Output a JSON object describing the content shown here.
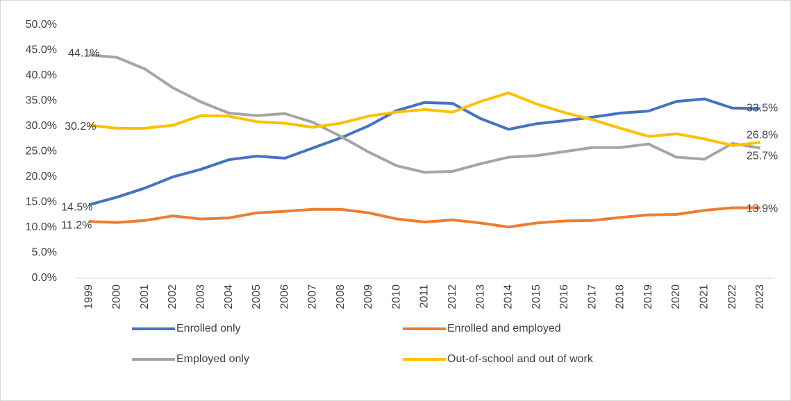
{
  "chart_data": {
    "type": "line",
    "categories": [
      "1999",
      "2000",
      "2001",
      "2002",
      "2003",
      "2004",
      "2005",
      "2006",
      "2007",
      "2008",
      "2009",
      "2010",
      "2011",
      "2012",
      "2013",
      "2014",
      "2015",
      "2016",
      "2017",
      "2018",
      "2019",
      "2020",
      "2021",
      "2022",
      "2023"
    ],
    "series": [
      {
        "name": "Enrolled only",
        "color": "#4472c4",
        "values": [
          14.5,
          16.0,
          17.8,
          20.0,
          21.5,
          23.4,
          24.1,
          23.7,
          25.7,
          27.7,
          30.1,
          33.1,
          34.7,
          34.5,
          31.5,
          29.4,
          30.5,
          31.1,
          31.8,
          32.6,
          33.0,
          34.9,
          35.4,
          33.6,
          33.5
        ],
        "value_labels": [
          "14.5%",
          null,
          null,
          null,
          null,
          null,
          null,
          null,
          null,
          null,
          null,
          null,
          null,
          null,
          null,
          null,
          null,
          null,
          null,
          null,
          null,
          null,
          null,
          null,
          "33.5%"
        ]
      },
      {
        "name": "Enrolled and employed",
        "color": "#ed7d31",
        "values": [
          11.2,
          11.0,
          11.4,
          12.3,
          11.7,
          11.9,
          12.9,
          13.2,
          13.6,
          13.6,
          12.9,
          11.7,
          11.1,
          11.5,
          10.9,
          10.1,
          10.9,
          11.3,
          11.4,
          12.0,
          12.5,
          12.6,
          13.4,
          13.9,
          13.9
        ],
        "value_labels": [
          "11.2%",
          null,
          null,
          null,
          null,
          null,
          null,
          null,
          null,
          null,
          null,
          null,
          null,
          null,
          null,
          null,
          null,
          null,
          null,
          null,
          null,
          null,
          null,
          null,
          "13.9%"
        ]
      },
      {
        "name": "Employed only",
        "color": "#a5a5a5",
        "values": [
          44.1,
          43.6,
          41.3,
          37.6,
          34.8,
          32.6,
          32.1,
          32.5,
          30.8,
          28.0,
          24.9,
          22.2,
          20.9,
          21.1,
          22.6,
          23.9,
          24.2,
          25.0,
          25.8,
          25.8,
          26.5,
          23.9,
          23.5,
          26.6,
          25.7
        ],
        "value_labels": [
          "44.1%",
          null,
          null,
          null,
          null,
          null,
          null,
          null,
          null,
          null,
          null,
          null,
          null,
          null,
          null,
          null,
          null,
          null,
          null,
          null,
          null,
          null,
          null,
          null,
          "25.7%"
        ]
      },
      {
        "name": "Out-of-school and out of work",
        "color": "#ffc000",
        "values": [
          30.2,
          29.6,
          29.6,
          30.2,
          32.1,
          32.0,
          30.9,
          30.6,
          29.8,
          30.6,
          32.0,
          32.8,
          33.3,
          32.8,
          34.9,
          36.6,
          34.4,
          32.7,
          31.3,
          29.6,
          28.0,
          28.5,
          27.5,
          26.2,
          26.8
        ],
        "value_labels": [
          "30.2%",
          null,
          null,
          null,
          null,
          null,
          null,
          null,
          null,
          null,
          null,
          null,
          null,
          null,
          null,
          null,
          null,
          null,
          null,
          null,
          null,
          null,
          null,
          null,
          "26.8%"
        ]
      }
    ],
    "ylim": [
      0,
      50
    ],
    "yticks": [
      {
        "value": 0,
        "label": "0.0%"
      },
      {
        "value": 5,
        "label": "5.0%"
      },
      {
        "value": 10,
        "label": "10.0%"
      },
      {
        "value": 15,
        "label": "15.0%"
      },
      {
        "value": 20,
        "label": "20.0%"
      },
      {
        "value": 25,
        "label": "25.0%"
      },
      {
        "value": 30,
        "label": "30.0%"
      },
      {
        "value": 35,
        "label": "35.0%"
      },
      {
        "value": 40,
        "label": "40.0%"
      },
      {
        "value": 45,
        "label": "45.0%"
      },
      {
        "value": 50,
        "label": "50.0%"
      }
    ],
    "grid": false
  }
}
